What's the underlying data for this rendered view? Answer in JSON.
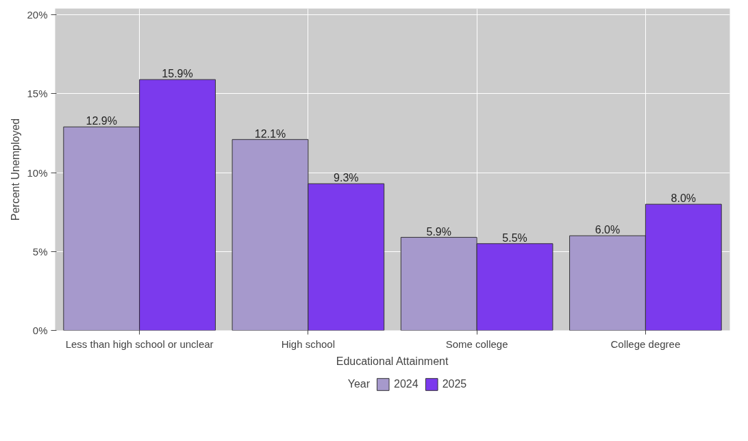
{
  "chart_data": {
    "type": "bar",
    "xlabel": "Educational Attainment",
    "ylabel": "Percent Unemployed",
    "legend_title": "Year",
    "categories": [
      "Less than high school or unclear",
      "High school",
      "Some college",
      "College degree"
    ],
    "series": [
      {
        "name": "2024",
        "color": "#a699cc",
        "values": [
          12.9,
          12.1,
          5.9,
          6.0
        ],
        "value_labels": [
          "12.9%",
          "12.1%",
          "5.9%",
          "6.0%"
        ]
      },
      {
        "name": "2025",
        "color": "#7b3aed",
        "values": [
          15.9,
          9.3,
          5.5,
          8.0
        ],
        "value_labels": [
          "15.9%",
          "9.3%",
          "5.5%",
          "8.0%"
        ]
      }
    ],
    "ylim": [
      0,
      20.4
    ],
    "yticks": [
      {
        "value": 0,
        "label": "0%"
      },
      {
        "value": 5,
        "label": "5%"
      },
      {
        "value": 10,
        "label": "10%"
      },
      {
        "value": 15,
        "label": "15%"
      },
      {
        "value": 20,
        "label": "20%"
      }
    ],
    "grid": true,
    "legend": "bottom"
  }
}
